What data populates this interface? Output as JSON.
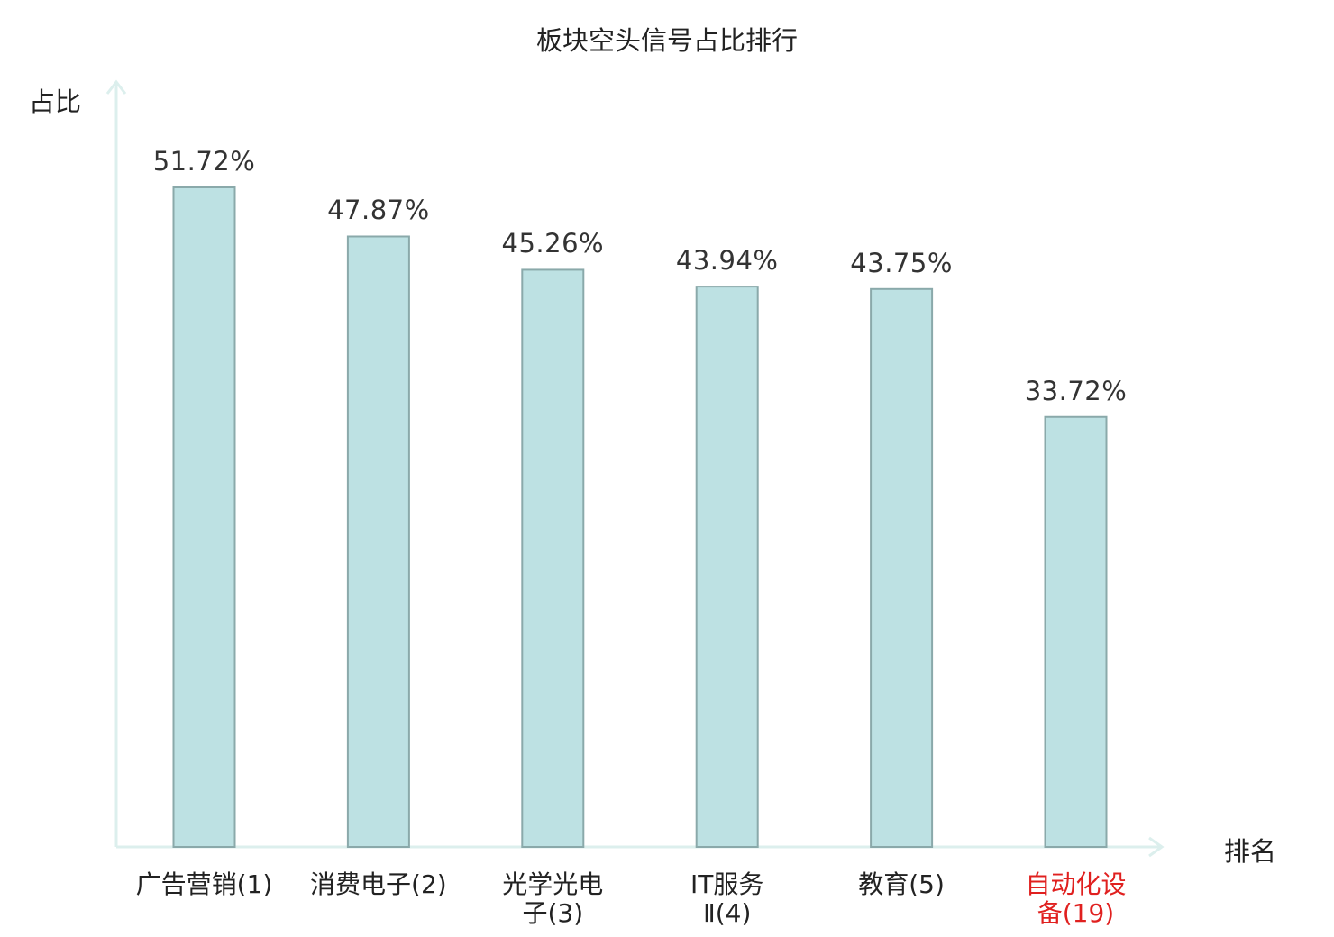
{
  "chart_data": {
    "type": "bar",
    "title": "板块空头信号占比排行",
    "ylabel": "占比",
    "xlabel": "排名",
    "categories": [
      "广告营销(1)",
      "消费电子(2)",
      "光学光电子(3)",
      "IT服务Ⅱ(4)",
      "教育(5)",
      "自动化设备(19)"
    ],
    "category_lines": [
      [
        "广告营销(1)"
      ],
      [
        "消费电子(2)"
      ],
      [
        "光学光电",
        "子(3)"
      ],
      [
        "IT服务",
        "Ⅱ(4)"
      ],
      [
        "教育(5)"
      ],
      [
        "自动化设",
        "备(19)"
      ]
    ],
    "values": [
      51.72,
      47.87,
      45.26,
      43.94,
      43.75,
      33.72
    ],
    "value_labels": [
      "51.72%",
      "47.87%",
      "45.26%",
      "43.94%",
      "43.75%",
      "33.72%"
    ],
    "highlight_index": 5,
    "ylim": [
      0,
      51.72
    ],
    "grid": false,
    "colors": {
      "bar_fill": "#bde1e3",
      "bar_stroke": "#8aa9aa",
      "axis": "#dcefed",
      "highlight_text": "#e0201f"
    }
  }
}
